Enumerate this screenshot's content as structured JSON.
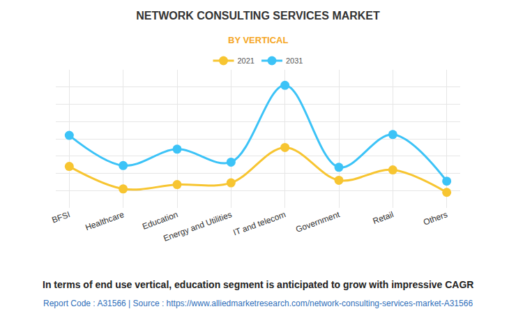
{
  "chart_data": {
    "type": "line",
    "title": "NETWORK CONSULTING SERVICES MARKET",
    "subtitle": "BY VERTICAL",
    "categories": [
      "BFSI",
      "Healthcare",
      "Education",
      "Energy and Utilities",
      "IT and telecom",
      "Government",
      "Retail",
      "Others"
    ],
    "series": [
      {
        "name": "2021",
        "color": "#f7c531",
        "values": [
          2.4,
          1.1,
          1.35,
          1.45,
          3.5,
          1.6,
          2.2,
          0.9
        ]
      },
      {
        "name": "2031",
        "color": "#3cc3f7",
        "values": [
          4.2,
          2.45,
          3.4,
          2.65,
          7.1,
          2.35,
          4.25,
          1.55
        ]
      }
    ],
    "ylim": [
      0,
      8
    ],
    "yticks": [
      0,
      1,
      2,
      3,
      4,
      5,
      6,
      7,
      8
    ],
    "grid": true,
    "tick_labels": "x",
    "line_style": "spline",
    "marker": "circle",
    "legend": "top",
    "annotations": [
      "In terms of end use vertical, education segment is anticipated to grow with impressive CAGR",
      "Report Code : A31566 | Source : https://www.alliedmarketresearch.com/network-consulting-services-market-A31566"
    ]
  }
}
